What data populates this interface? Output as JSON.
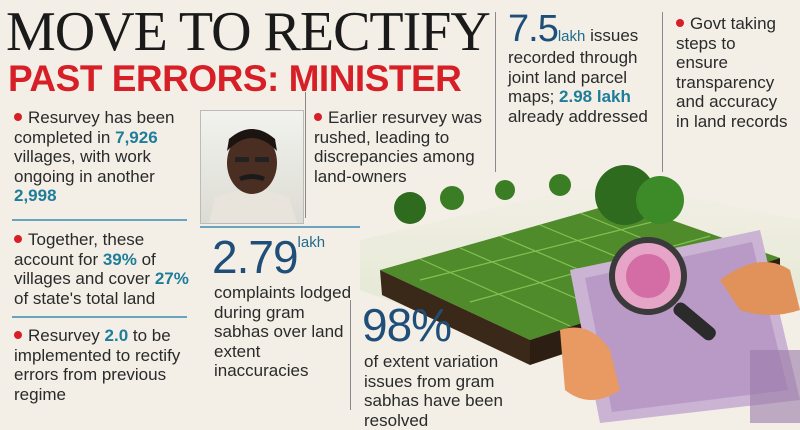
{
  "headline": {
    "line1": "MOVE TO RECTIFY",
    "line2": "PAST ERRORS: MINISTER"
  },
  "col1": {
    "b1": {
      "t1": "Resurvey has been completed in ",
      "v1": "7,926",
      "t2": " villages, with work ongoing in another ",
      "v2": "2,998"
    },
    "b2": {
      "t1": "Together, these account for ",
      "v1": "39%",
      "t2": " of villages and cover ",
      "v2": "27%",
      "t3": " of state's total land"
    },
    "b3": {
      "t1": "Resurvey ",
      "v1": "2.0",
      "t2": " to be implemented to rectify errors from previous regime"
    }
  },
  "col2": {
    "bullet": "Earlier resurvey was rushed, leading to discrepancies among land-owners",
    "stat_value": "2.79",
    "stat_unit": "lakh",
    "stat_text": "complaints lodged during gram sabhas over land extent inaccuracies"
  },
  "col3": {
    "stat_value": "7.5",
    "stat_unit": "lakh",
    "t1": " issues recorded through joint land parcel maps; ",
    "v2": "2.98 lakh",
    "t2": " already addressed"
  },
  "col4": {
    "bullet": "Govt taking steps to ensure transparency and accuracy in land records"
  },
  "col5": {
    "stat_value": "98%",
    "stat_text": "of extent variation issues from gram sabhas have been resolved"
  },
  "colors": {
    "headline_red": "#d61f26",
    "highlight_blue": "#1f7d9a",
    "stat_blue": "#1f4e79"
  }
}
